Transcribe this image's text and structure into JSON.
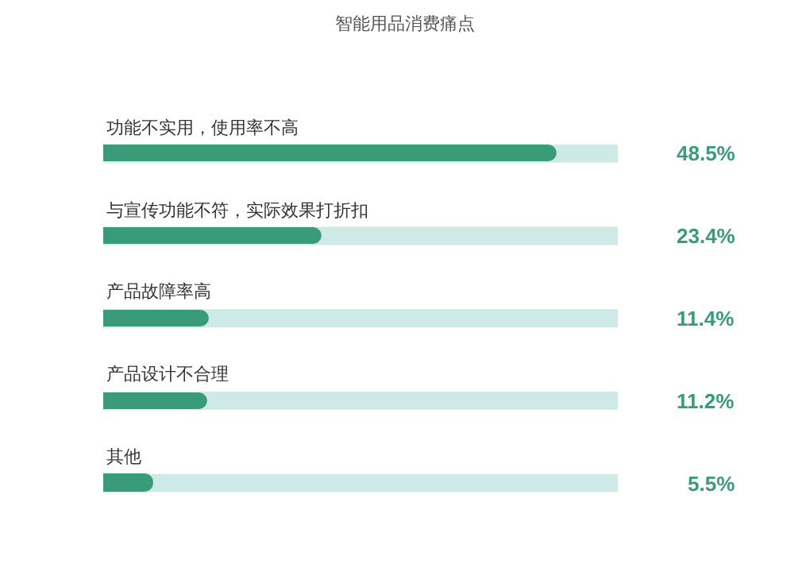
{
  "chart_data": {
    "type": "bar",
    "orientation": "horizontal",
    "title": "智能用品消费痛点",
    "categories": [
      "功能不实用，使用率不高",
      "与宣传功能不符，实际效果打折扣",
      "产品故障率高",
      "产品设计不合理",
      "其他"
    ],
    "values": [
      48.5,
      23.4,
      11.4,
      11.2,
      5.5
    ],
    "value_labels": [
      "48.5%",
      "23.4%",
      "11.4%",
      "11.2%",
      "5.5%"
    ],
    "color": "#3a9b78",
    "xlim": [
      0,
      55
    ],
    "tick_labels": false,
    "grid": false,
    "legend": false
  }
}
